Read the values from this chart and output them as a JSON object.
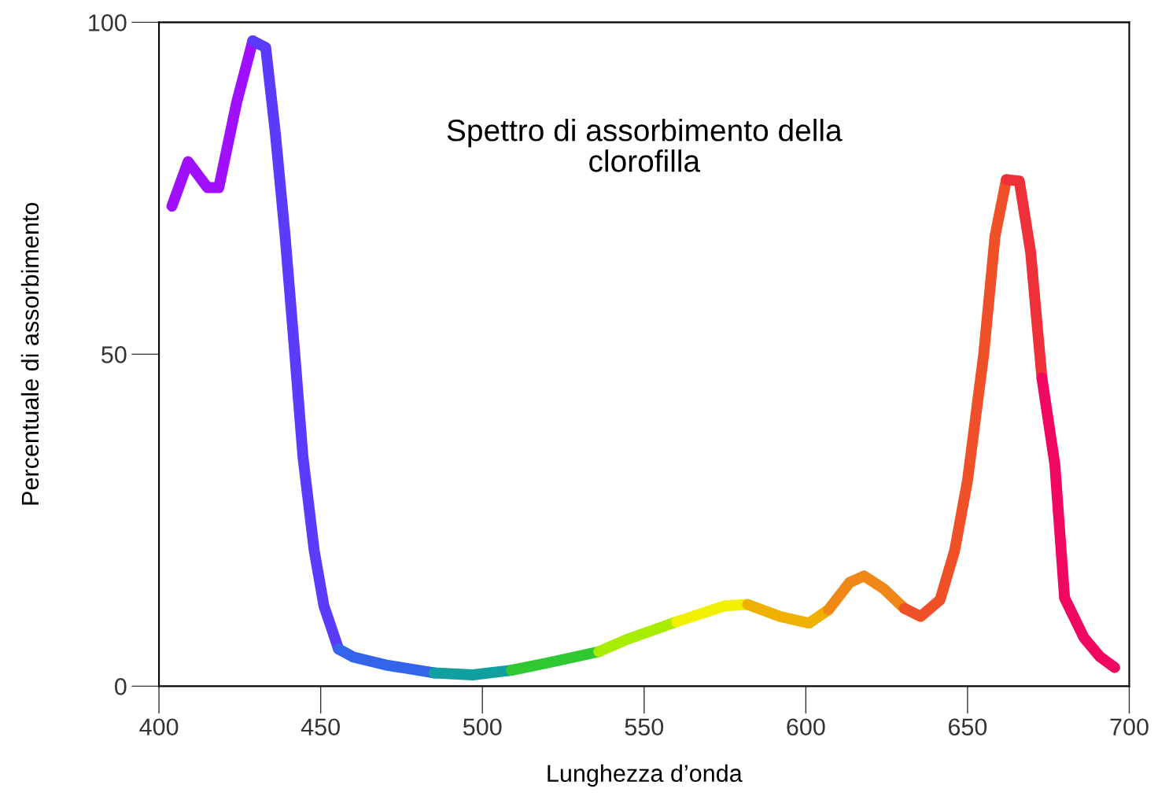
{
  "chart_data": {
    "type": "line",
    "title": "Spettro di assorbimento della\nclorofilla",
    "xlabel": "Lunghezza d’onda",
    "ylabel": "Percentuale di assorbimento",
    "xlim": [
      400,
      700
    ],
    "ylim": [
      0,
      100
    ],
    "xticks": [
      400,
      450,
      500,
      550,
      600,
      650,
      700
    ],
    "yticks": [
      0,
      50,
      100
    ],
    "grid": false,
    "legend": false,
    "line_style": "solid",
    "series": [
      {
        "color": "#a010ff",
        "x": [
          404,
          409,
          415,
          418.5,
          424,
          429
        ],
        "values": [
          72.3,
          79,
          75.1,
          75.1,
          87.9,
          97.2
        ]
      },
      {
        "color": "#5a3cff",
        "x": [
          429,
          433,
          436,
          439,
          442,
          444.5,
          448,
          451,
          455.5
        ],
        "values": [
          97.2,
          96.2,
          83.2,
          67.8,
          50,
          34.6,
          20.4,
          12.1,
          5.6
        ]
      },
      {
        "color": "#3264ec",
        "x": [
          455.5,
          460,
          470,
          485
        ],
        "values": [
          5.6,
          4.4,
          3.2,
          2
        ]
      },
      {
        "color": "#10a0a0",
        "x": [
          485,
          497,
          509
        ],
        "values": [
          2,
          1.7,
          2.4
        ]
      },
      {
        "color": "#30c830",
        "x": [
          509,
          521,
          536
        ],
        "values": [
          2.4,
          3.6,
          5.2
        ]
      },
      {
        "color": "#a8ec00",
        "x": [
          536,
          545,
          560
        ],
        "values": [
          5.2,
          7.1,
          9.7
        ]
      },
      {
        "color": "#f0f000",
        "x": [
          560,
          575,
          582
        ],
        "values": [
          9.7,
          12.1,
          12.3
        ]
      },
      {
        "color": "#f0b000",
        "x": [
          582,
          592,
          601,
          607
        ],
        "values": [
          12.3,
          10.5,
          9.5,
          11.5
        ]
      },
      {
        "color": "#f08818",
        "x": [
          607,
          613.5,
          618,
          624,
          630.5
        ],
        "values": [
          11.5,
          15.6,
          16.6,
          14.7,
          11.7
        ]
      },
      {
        "color": "#f05028",
        "x": [
          630.5,
          635.5,
          641.5,
          646,
          650,
          655,
          658.5,
          662
        ],
        "values": [
          11.7,
          10.5,
          13,
          20.4,
          31,
          50,
          67.8,
          76.3
        ]
      },
      {
        "color": "#f03038",
        "x": [
          662,
          666,
          669.5,
          673
        ],
        "values": [
          76.3,
          76.1,
          65.4,
          46.4
        ]
      },
      {
        "color": "#f00860",
        "x": [
          673,
          677,
          680,
          686,
          691,
          695.5
        ],
        "values": [
          46.4,
          33.4,
          13.3,
          7.3,
          4.4,
          2.8
        ]
      }
    ]
  }
}
